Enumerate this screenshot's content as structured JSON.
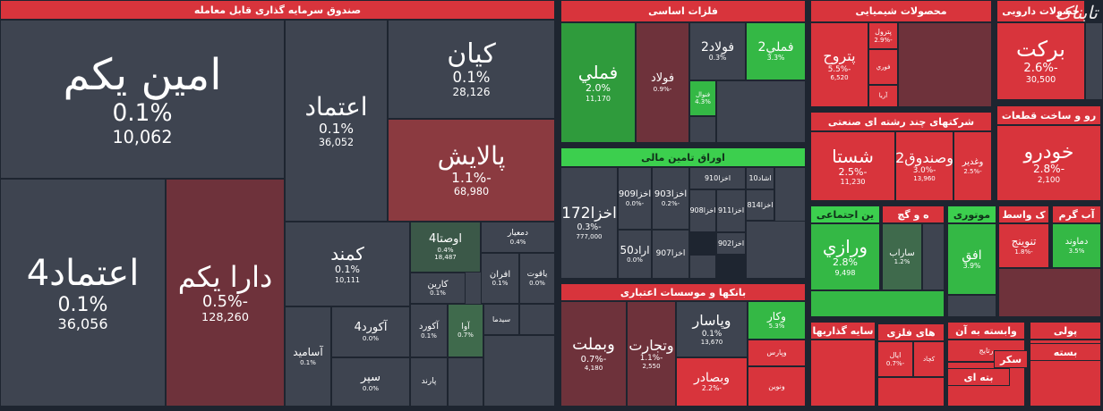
{
  "watermark": "تابناک",
  "sectors": [
    {
      "title": "صندوق سرمایه گذاری قابل معامله",
      "tiles": [
        {
          "name": "امین یکم",
          "change": "0.1%",
          "volume": "10,062"
        },
        {
          "name": "اعتماد4",
          "change": "0.1%",
          "volume": "36,056"
        },
        {
          "name": "دارا یکم",
          "change": "-0.5%",
          "volume": "128,260"
        },
        {
          "name": "اعتماد",
          "change": "0.1%",
          "volume": "36,052"
        },
        {
          "name": "کیان",
          "change": "0.1%",
          "volume": "28,126"
        },
        {
          "name": "پالایش",
          "change": "-1.1%",
          "volume": "68,980"
        },
        {
          "name": "کمند",
          "change": "0.1%",
          "volume": "10,111"
        },
        {
          "name": "اوصتا4",
          "change": "0.4%",
          "volume": "18,487"
        },
        {
          "name": "دمعیار",
          "change": "0.4%"
        },
        {
          "name": "افران",
          "change": "0.1%"
        },
        {
          "name": "یاقوت",
          "change": "0.0%"
        },
        {
          "name": "کارین",
          "change": "0.1%"
        },
        {
          "name": "آکورد4",
          "change": "0.0%"
        },
        {
          "name": "آسامید",
          "change": "0.1%"
        },
        {
          "name": "سپر",
          "change": "0.0%"
        },
        {
          "name": "آکورد",
          "change": "0.1%"
        },
        {
          "name": "آوا",
          "change": "0.7%"
        },
        {
          "name": "سیدما"
        },
        {
          "name": "پارند"
        }
      ]
    },
    {
      "title": "فلزات اساسی",
      "tiles": [
        {
          "name": "فملي",
          "change": "2.0%",
          "volume": "11,170"
        },
        {
          "name": "فولاد",
          "change": "-0.9%"
        },
        {
          "name": "فولاد2",
          "change": "0.3%"
        },
        {
          "name": "فملي2",
          "change": "3.3%"
        },
        {
          "name": "فنوال",
          "change": "4.3%"
        }
      ]
    },
    {
      "title": "اوراق تامین مالی",
      "tiles": [
        {
          "name": "اخزا172",
          "change": "-0.3%",
          "volume": "777,000"
        },
        {
          "name": "اخزا909",
          "change": "-0.0%"
        },
        {
          "name": "اخزا903",
          "change": "-0.2%"
        },
        {
          "name": "اراد50",
          "change": "0.0%"
        },
        {
          "name": "اخزا907"
        },
        {
          "name": "اخزا910"
        },
        {
          "name": "اخزا908"
        },
        {
          "name": "اخزا911"
        },
        {
          "name": "اخزا902"
        },
        {
          "name": "اشاد10"
        },
        {
          "name": "اخزا814"
        }
      ]
    },
    {
      "title": "بانکها و موسسات اعتباری",
      "tiles": [
        {
          "name": "وبملت",
          "change": "-0.7%",
          "volume": "4,180"
        },
        {
          "name": "وتجارت",
          "change": "-1.1%",
          "volume": "2,550"
        },
        {
          "name": "وپاسار",
          "change": "0.1%",
          "volume": "13,670"
        },
        {
          "name": "وکار",
          "change": "5.3%"
        },
        {
          "name": "وپارس"
        },
        {
          "name": "وبصادر",
          "change": "-2.2%"
        },
        {
          "name": "ونوین"
        }
      ]
    },
    {
      "title": "محصولات شیمیایی",
      "tiles": [
        {
          "name": "پتروح",
          "change": "-5.5%",
          "volume": "6,520"
        },
        {
          "name": "پترول",
          "change": "-2.9%"
        },
        {
          "name": "فوري"
        },
        {
          "name": "آریا"
        }
      ]
    },
    {
      "title": "حصولات دارویی",
      "tiles": [
        {
          "name": "برکت",
          "change": "-2.6%",
          "volume": "30,500"
        }
      ]
    },
    {
      "title": "شرکتهای چند رشته ای صنعتی",
      "tiles": [
        {
          "name": "شستا",
          "change": "-2.5%",
          "volume": "11,230"
        },
        {
          "name": "وصندوق2",
          "change": "-3.0%",
          "volume": "13,960"
        },
        {
          "name": "وغدیر",
          "change": "-2.5%"
        }
      ]
    },
    {
      "title": "رو و ساخت قطعات",
      "tiles": [
        {
          "name": "خودرو",
          "change": "-2.8%",
          "volume": "2,100"
        }
      ]
    },
    {
      "title": "ین اجتماعی",
      "tiles": [
        {
          "name": "ورازي",
          "change": "2.8%",
          "volume": "9,498"
        }
      ]
    },
    {
      "title": "ه و گچ",
      "tiles": [
        {
          "name": "ساراب",
          "change": "1.2%"
        }
      ]
    },
    {
      "title": "موتوری",
      "tiles": [
        {
          "name": "افق",
          "change": "3.9%"
        }
      ]
    },
    {
      "title": "ک واسط",
      "tiles": [
        {
          "name": "تنوینج",
          "change": "-1.8%"
        }
      ]
    },
    {
      "title": "آب گرم",
      "tiles": [
        {
          "name": "دماوند",
          "change": "3.5%"
        }
      ]
    },
    {
      "title": "سایه گذاریها",
      "tiles": []
    },
    {
      "title": "های فلزی",
      "tiles": [
        {
          "name": "ایال",
          "change": "-0.7%"
        },
        {
          "name": "کچاد"
        }
      ]
    },
    {
      "title": "وابسته به آن",
      "tiles": [
        {
          "name": "رتایج"
        }
      ]
    },
    {
      "title": "پولی",
      "tiles": []
    },
    {
      "title": "بسته",
      "tiles": []
    },
    {
      "title": "بته ای",
      "tiles": []
    },
    {
      "title": "سکر",
      "tiles": []
    }
  ]
}
